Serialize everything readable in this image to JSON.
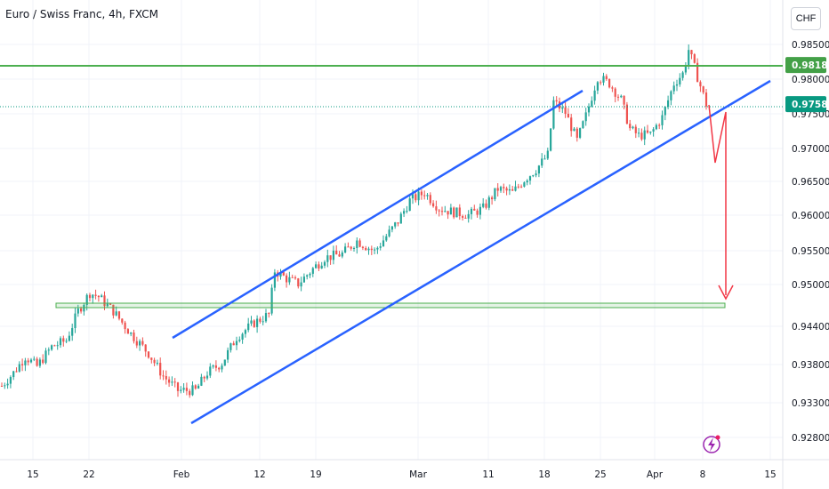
{
  "header": {
    "title": "Euro / Swiss Franc, 4h, FXCM",
    "currency_button": "CHF"
  },
  "colors": {
    "up": "#26a69a",
    "down": "#ef5350",
    "channel": "#2962ff",
    "resistance": "#4caf50",
    "arrow": "#f23645",
    "current_tag": "#089981",
    "level_tag": "#43a047",
    "grid": "#f0f3fa"
  },
  "chart_data": {
    "type": "candlestick",
    "title": "Euro / Swiss Franc, 4h, FXCM",
    "ylim": [
      0.9245,
      0.9875
    ],
    "y_ticks": [
      "0.98500",
      "0.98000",
      "0.97500",
      "0.97000",
      "0.96500",
      "0.96000",
      "0.95500",
      "0.95000",
      "0.94400",
      "0.93800",
      "0.93300",
      "0.92800"
    ],
    "x_ticks": [
      "15",
      "22",
      "Feb",
      "12",
      "19",
      "Mar",
      "11",
      "18",
      "25",
      "Apr",
      "8",
      "15"
    ],
    "price_tags": [
      {
        "label": "0.98184",
        "value": 0.98184,
        "kind": "level"
      },
      {
        "label": "0.97582",
        "value": 0.97582,
        "kind": "current"
      }
    ],
    "price_path": [
      {
        "t": 0,
        "p": 0.9325
      },
      {
        "t": 4,
        "p": 0.9345
      },
      {
        "t": 8,
        "p": 0.937
      },
      {
        "t": 12,
        "p": 0.9355
      },
      {
        "t": 17,
        "p": 0.9385
      },
      {
        "t": 22,
        "p": 0.9395
      },
      {
        "t": 26,
        "p": 0.944
      },
      {
        "t": 30,
        "p": 0.9468
      },
      {
        "t": 33,
        "p": 0.9462
      },
      {
        "t": 38,
        "p": 0.944
      },
      {
        "t": 44,
        "p": 0.9405
      },
      {
        "t": 50,
        "p": 0.9375
      },
      {
        "t": 55,
        "p": 0.934
      },
      {
        "t": 60,
        "p": 0.9318
      },
      {
        "t": 66,
        "p": 0.9318
      },
      {
        "t": 70,
        "p": 0.9345
      },
      {
        "t": 75,
        "p": 0.936
      },
      {
        "t": 80,
        "p": 0.94
      },
      {
        "t": 86,
        "p": 0.9422
      },
      {
        "t": 91,
        "p": 0.9435
      },
      {
        "t": 93,
        "p": 0.9502
      },
      {
        "t": 97,
        "p": 0.949
      },
      {
        "t": 101,
        "p": 0.9482
      },
      {
        "t": 106,
        "p": 0.9505
      },
      {
        "t": 110,
        "p": 0.9522
      },
      {
        "t": 116,
        "p": 0.9528
      },
      {
        "t": 121,
        "p": 0.9548
      },
      {
        "t": 127,
        "p": 0.9532
      },
      {
        "t": 131,
        "p": 0.9555
      },
      {
        "t": 135,
        "p": 0.9578
      },
      {
        "t": 139,
        "p": 0.961
      },
      {
        "t": 144,
        "p": 0.9622
      },
      {
        "t": 149,
        "p": 0.9598
      },
      {
        "t": 154,
        "p": 0.9592
      },
      {
        "t": 159,
        "p": 0.9588
      },
      {
        "t": 164,
        "p": 0.9598
      },
      {
        "t": 169,
        "p": 0.9628
      },
      {
        "t": 174,
        "p": 0.9622
      },
      {
        "t": 178,
        "p": 0.9642
      },
      {
        "t": 182,
        "p": 0.9658
      },
      {
        "t": 186,
        "p": 0.968
      },
      {
        "t": 188,
        "p": 0.9762
      },
      {
        "t": 192,
        "p": 0.9745
      },
      {
        "t": 196,
        "p": 0.9702
      },
      {
        "t": 199,
        "p": 0.974
      },
      {
        "t": 203,
        "p": 0.98
      },
      {
        "t": 207,
        "p": 0.979
      },
      {
        "t": 211,
        "p": 0.9765
      },
      {
        "t": 214,
        "p": 0.972
      },
      {
        "t": 217,
        "p": 0.971
      },
      {
        "t": 221,
        "p": 0.9712
      },
      {
        "t": 225,
        "p": 0.9738
      },
      {
        "t": 229,
        "p": 0.979
      },
      {
        "t": 232,
        "p": 0.9805
      },
      {
        "t": 234,
        "p": 0.9842
      },
      {
        "t": 237,
        "p": 0.98
      },
      {
        "t": 240,
        "p": 0.9758
      }
    ]
  }
}
